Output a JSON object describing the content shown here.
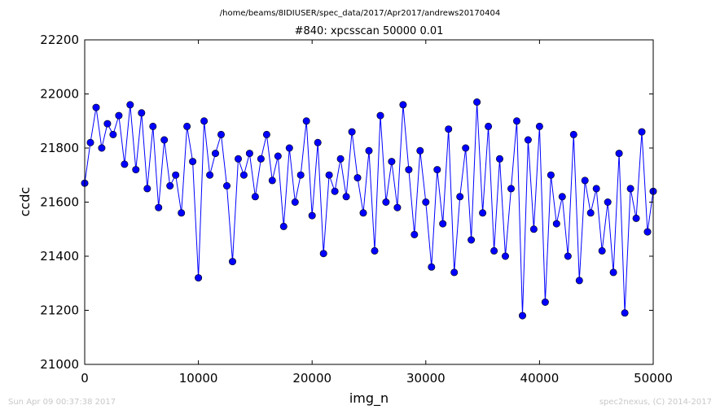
{
  "figure": {
    "suptitle": "/home/beams/8IDIUSER/spec_data/2017/Apr2017/andrews20170404",
    "footer_left": "Sun Apr 09 00:37:38 2017",
    "footer_right": "spec2nexus, (C) 2014-2017"
  },
  "chart_data": {
    "type": "line",
    "title": "#840: xpcsscan 50000 0.01",
    "xlabel": "img_n",
    "ylabel": "ccdc",
    "xlim": [
      0,
      50000
    ],
    "ylim": [
      21000,
      22200
    ],
    "xticks": [
      "0",
      "10000",
      "20000",
      "30000",
      "40000",
      "50000"
    ],
    "yticks": [
      "21000",
      "21200",
      "21400",
      "21600",
      "21800",
      "22000",
      "22200"
    ],
    "grid": false,
    "line_color": "#0000ff",
    "marker": "circle",
    "series": [
      {
        "values": [
          [
            0,
            21670
          ],
          [
            500,
            21820
          ],
          [
            1000,
            21950
          ],
          [
            1500,
            21800
          ],
          [
            2000,
            21890
          ],
          [
            2500,
            21850
          ],
          [
            3000,
            21920
          ],
          [
            3500,
            21740
          ],
          [
            4000,
            21960
          ],
          [
            4500,
            21720
          ],
          [
            5000,
            21930
          ],
          [
            5500,
            21650
          ],
          [
            6000,
            21880
          ],
          [
            6500,
            21580
          ],
          [
            7000,
            21830
          ],
          [
            7500,
            21660
          ],
          [
            8000,
            21700
          ],
          [
            8500,
            21560
          ],
          [
            9000,
            21880
          ],
          [
            9500,
            21750
          ],
          [
            10000,
            21320
          ],
          [
            10500,
            21900
          ],
          [
            11000,
            21700
          ],
          [
            11500,
            21780
          ],
          [
            12000,
            21850
          ],
          [
            12500,
            21660
          ],
          [
            13000,
            21380
          ],
          [
            13500,
            21760
          ],
          [
            14000,
            21700
          ],
          [
            14500,
            21780
          ],
          [
            15000,
            21620
          ],
          [
            15500,
            21760
          ],
          [
            16000,
            21850
          ],
          [
            16500,
            21680
          ],
          [
            17000,
            21770
          ],
          [
            17500,
            21510
          ],
          [
            18000,
            21800
          ],
          [
            18500,
            21600
          ],
          [
            19000,
            21700
          ],
          [
            19500,
            21900
          ],
          [
            20000,
            21550
          ],
          [
            20500,
            21820
          ],
          [
            21000,
            21410
          ],
          [
            21500,
            21700
          ],
          [
            22000,
            21640
          ],
          [
            22500,
            21760
          ],
          [
            23000,
            21620
          ],
          [
            23500,
            21860
          ],
          [
            24000,
            21690
          ],
          [
            24500,
            21560
          ],
          [
            25000,
            21790
          ],
          [
            25500,
            21420
          ],
          [
            26000,
            21920
          ],
          [
            26500,
            21600
          ],
          [
            27000,
            21750
          ],
          [
            27500,
            21580
          ],
          [
            28000,
            21960
          ],
          [
            28500,
            21720
          ],
          [
            29000,
            21480
          ],
          [
            29500,
            21790
          ],
          [
            30000,
            21600
          ],
          [
            30500,
            21360
          ],
          [
            31000,
            21720
          ],
          [
            31500,
            21520
          ],
          [
            32000,
            21870
          ],
          [
            32500,
            21340
          ],
          [
            33000,
            21620
          ],
          [
            33500,
            21800
          ],
          [
            34000,
            21460
          ],
          [
            34500,
            21970
          ],
          [
            35000,
            21560
          ],
          [
            35500,
            21880
          ],
          [
            36000,
            21420
          ],
          [
            36500,
            21760
          ],
          [
            37000,
            21400
          ],
          [
            37500,
            21650
          ],
          [
            38000,
            21900
          ],
          [
            38500,
            21180
          ],
          [
            39000,
            21830
          ],
          [
            39500,
            21500
          ],
          [
            40000,
            21880
          ],
          [
            40500,
            21230
          ],
          [
            41000,
            21700
          ],
          [
            41500,
            21520
          ],
          [
            42000,
            21620
          ],
          [
            42500,
            21400
          ],
          [
            43000,
            21850
          ],
          [
            43500,
            21310
          ],
          [
            44000,
            21680
          ],
          [
            44500,
            21560
          ],
          [
            45000,
            21650
          ],
          [
            45500,
            21420
          ],
          [
            46000,
            21600
          ],
          [
            46500,
            21340
          ],
          [
            47000,
            21780
          ],
          [
            47500,
            21190
          ],
          [
            48000,
            21650
          ],
          [
            48500,
            21540
          ],
          [
            49000,
            21860
          ],
          [
            49500,
            21490
          ],
          [
            50000,
            21640
          ]
        ]
      }
    ]
  }
}
